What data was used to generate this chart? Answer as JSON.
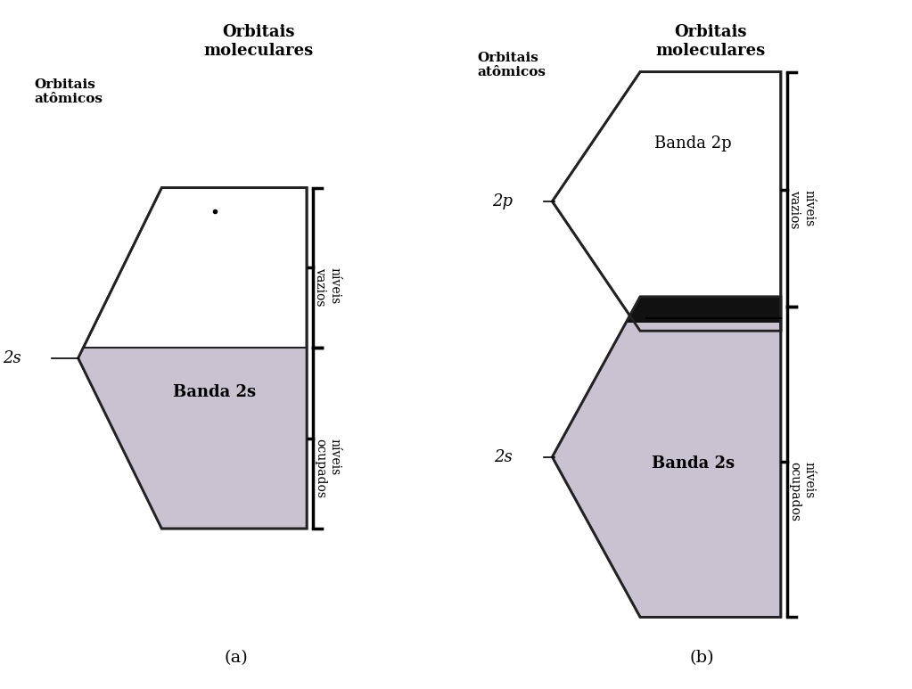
{
  "bg_color": "#ffffff",
  "fig_width": 10.23,
  "fig_height": 7.73,
  "diagram_a": {
    "title": "Orbitais\nmoleculares",
    "label_atomic": "Orbitais\natômicos",
    "orbital_label": "2s",
    "band_label": "Banda 2s",
    "niveis_vazios": "níveis\nvazios",
    "niveis_ocupados": "níveis\nocupados",
    "caption": "(a)",
    "hex_color": "#c0b8c8",
    "hex_edge": "#222222",
    "fill_ratio": 0.5
  },
  "diagram_b": {
    "title": "Orbitais\nmoleculares",
    "label_atomic": "Orbitais\natômicos",
    "orbital_2p": "2p",
    "orbital_2s": "2s",
    "band_2p_label": "Banda 2p",
    "band_2s_label": "Banda 2s",
    "niveis_vazios": "níveis\nvazios",
    "niveis_ocupados": "níveis\nocupados",
    "caption": "(b)",
    "hex_color": "#c0b8c8",
    "hex_edge": "#222222",
    "black_band_color": "#111111",
    "fill_ratio": 0.5
  }
}
